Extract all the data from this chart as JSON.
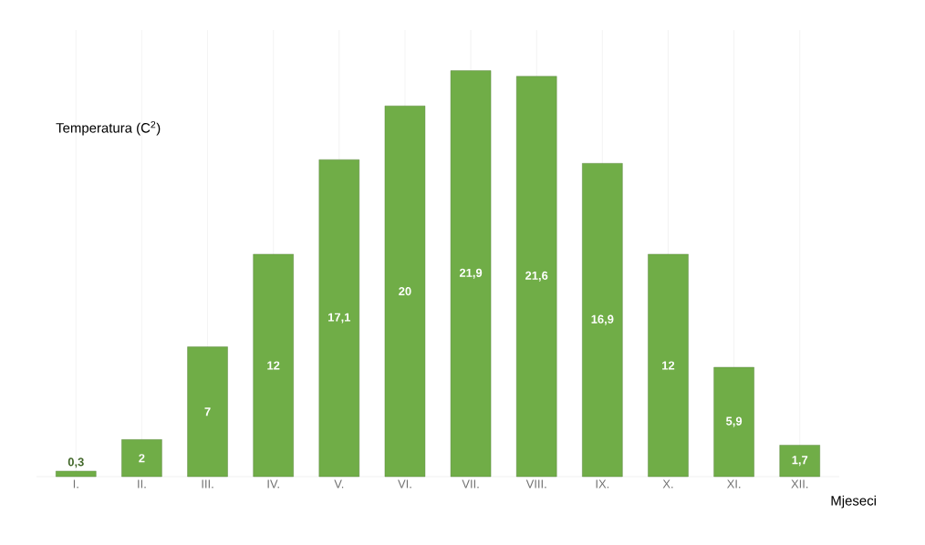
{
  "chart_data": {
    "type": "bar",
    "ylabel": "Temperatura (C$^{2}$)",
    "xlabel": "Mjeseci",
    "categories": [
      "I.",
      "II.",
      "III.",
      "IV.",
      "V.",
      "VI.",
      "VII.",
      "VIII.",
      "IX.",
      "X.",
      "XI.",
      "XII."
    ],
    "values": [
      0.3,
      2,
      7,
      12,
      17.1,
      20,
      21.9,
      21.6,
      16.9,
      12,
      5.9,
      1.7
    ],
    "value_labels": [
      "0,3",
      "2",
      "7",
      "12",
      "17,1",
      "20",
      "21,9",
      "21,6",
      "16,9",
      "12",
      "5,9",
      "1,7"
    ],
    "color": "#70ad47",
    "grid": "x",
    "tick_labels": "x"
  }
}
